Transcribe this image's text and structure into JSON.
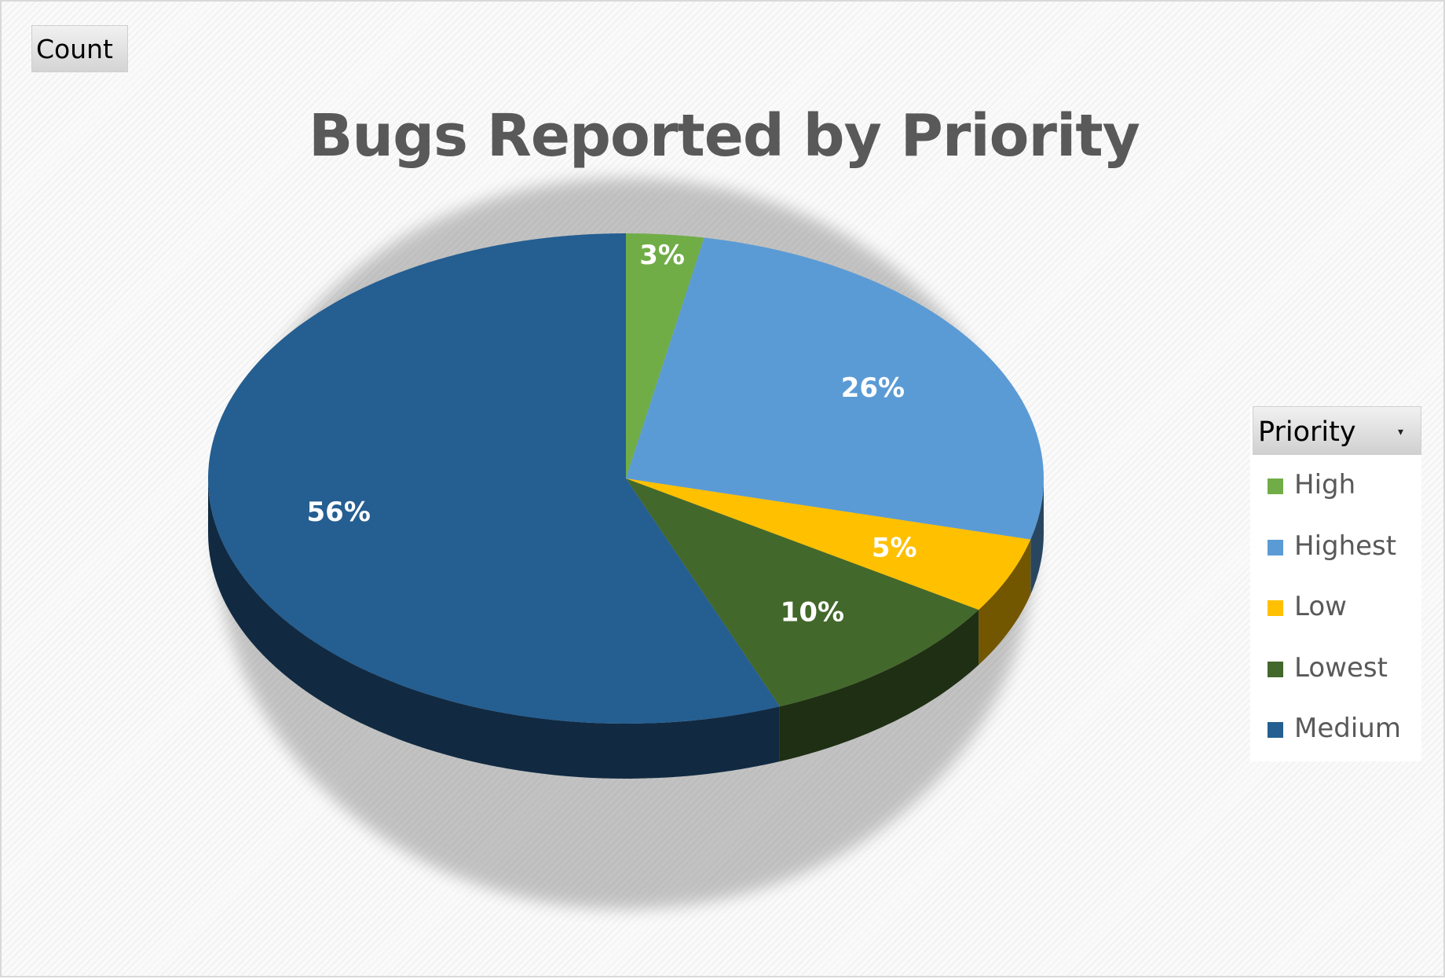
{
  "field_button": {
    "label": "Count"
  },
  "chart_data": {
    "type": "pie",
    "title": "Bugs Reported by Priority",
    "value_format": "percent",
    "slices": [
      {
        "label": "High",
        "value": 3,
        "data_label": "3%",
        "color": "#70ad47"
      },
      {
        "label": "Highest",
        "value": 26,
        "data_label": "26%",
        "color": "#5b9bd5"
      },
      {
        "label": "Low",
        "value": 5,
        "data_label": "5%",
        "color": "#ffc000"
      },
      {
        "label": "Lowest",
        "value": 10,
        "data_label": "10%",
        "color": "#43682b"
      },
      {
        "label": "Medium",
        "value": 56,
        "data_label": "56%",
        "color": "#255e91"
      }
    ],
    "legend": {
      "title": "Priority",
      "position": "right"
    },
    "style": "3d"
  },
  "colors": {
    "data_label": "#ffffff",
    "title": "#595959"
  }
}
